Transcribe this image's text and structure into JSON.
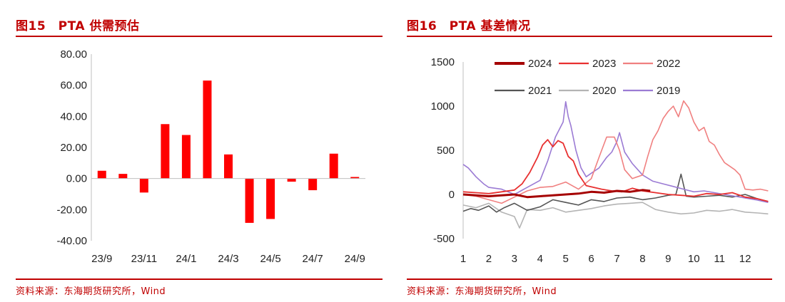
{
  "left": {
    "title": "图15　PTA 供需预估",
    "source": "资料来源：东海期货研究所，Wind",
    "chart_data": {
      "type": "bar",
      "title": "PTA 供需预估",
      "categories": [
        "23/9",
        "23/10",
        "23/11",
        "23/12",
        "24/1",
        "24/2",
        "24/3",
        "24/4",
        "24/5",
        "24/6",
        "24/7",
        "24/8",
        "24/9"
      ],
      "values": [
        5,
        3,
        -9,
        35,
        28,
        63,
        15.5,
        -28.5,
        -26,
        -2,
        -7.5,
        16,
        1
      ],
      "x_tick_labels": [
        "23/9",
        "23/11",
        "24/1",
        "24/3",
        "24/5",
        "24/7",
        "24/9"
      ],
      "y_tick_labels": [
        "80.00",
        "60.00",
        "40.00",
        "20.00",
        "0.00",
        "-20.00",
        "-40.00"
      ],
      "ylim": [
        -40,
        80
      ],
      "bar_color": "#ff0000"
    }
  },
  "right": {
    "title": "图16　PTA 基差情况",
    "source": "资料来源：东海期货研究所，Wind",
    "chart_data": {
      "type": "line",
      "title": "PTA 基差情况",
      "xlim": [
        1,
        13
      ],
      "ylim": [
        -500,
        1500
      ],
      "x_tick_labels": [
        "1",
        "2",
        "3",
        "4",
        "5",
        "6",
        "7",
        "8",
        "9",
        "10",
        "11",
        "12"
      ],
      "y_tick_labels": [
        "1500",
        "1000",
        "500",
        "0",
        "-500"
      ],
      "legend_position": "top",
      "series": [
        {
          "name": "2024",
          "color": "#a50000",
          "width": 3,
          "x": [
            1,
            1.5,
            2,
            2.5,
            3,
            3.5,
            4,
            4.5,
            5,
            5.5,
            6,
            6.5,
            7,
            7.5,
            8,
            8.3
          ],
          "y": [
            0,
            -10,
            -20,
            -10,
            0,
            -30,
            -20,
            -10,
            0,
            10,
            30,
            20,
            40,
            30,
            50,
            40
          ]
        },
        {
          "name": "2023",
          "color": "#e83030",
          "width": 1.8,
          "x": [
            1,
            1.5,
            2,
            2.5,
            3,
            3.3,
            3.6,
            3.9,
            4.1,
            4.3,
            4.5,
            4.7,
            4.9,
            5.1,
            5.3,
            5.5,
            5.8,
            6.1,
            6.4,
            6.8,
            7.2,
            7.6,
            8,
            8.5,
            9,
            9.5,
            10,
            10.5,
            11,
            11.5,
            12,
            12.5,
            12.9
          ],
          "y": [
            30,
            20,
            10,
            30,
            50,
            120,
            250,
            420,
            560,
            620,
            540,
            610,
            580,
            430,
            380,
            230,
            100,
            80,
            60,
            40,
            30,
            70,
            40,
            20,
            0,
            -10,
            -20,
            10,
            0,
            20,
            -30,
            -50,
            -80
          ]
        },
        {
          "name": "2022",
          "color": "#f08080",
          "width": 1.6,
          "x": [
            1,
            1.5,
            2,
            2.5,
            3,
            3.5,
            4,
            4.5,
            5,
            5.5,
            6,
            6.3,
            6.6,
            6.9,
            7.1,
            7.3,
            7.6,
            8,
            8.2,
            8.4,
            8.6,
            8.8,
            9,
            9.2,
            9.4,
            9.6,
            9.8,
            10,
            10.2,
            10.4,
            10.6,
            10.8,
            11,
            11.2,
            11.4,
            11.6,
            11.8,
            12,
            12.3,
            12.6,
            12.9
          ],
          "y": [
            0,
            -20,
            -60,
            -100,
            -30,
            40,
            80,
            90,
            140,
            60,
            180,
            420,
            650,
            650,
            500,
            280,
            180,
            220,
            430,
            620,
            720,
            860,
            940,
            1000,
            880,
            1060,
            980,
            820,
            720,
            760,
            600,
            560,
            450,
            360,
            320,
            280,
            220,
            60,
            50,
            60,
            40
          ]
        },
        {
          "name": "2021",
          "color": "#555555",
          "width": 1.6,
          "x": [
            1,
            1.3,
            1.6,
            2,
            2.3,
            2.6,
            3,
            3.5,
            4,
            4.5,
            5,
            5.5,
            6,
            6.5,
            7,
            7.5,
            8,
            8.5,
            9,
            9.3,
            9.5,
            9.7,
            10,
            10.5,
            11,
            11.5,
            12,
            12.5,
            12.9
          ],
          "y": [
            -190,
            -160,
            -180,
            -130,
            -200,
            -150,
            -100,
            -180,
            -140,
            -60,
            -90,
            -120,
            -60,
            -80,
            -40,
            -30,
            -60,
            -40,
            -10,
            0,
            230,
            -20,
            -30,
            -20,
            -10,
            -30,
            0,
            -50,
            -80
          ]
        },
        {
          "name": "2020",
          "color": "#b4b4b4",
          "width": 1.6,
          "x": [
            1,
            1.5,
            2,
            2.5,
            3,
            3.2,
            3.5,
            4,
            4.5,
            5,
            5.5,
            6,
            6.5,
            7,
            7.5,
            8,
            8.5,
            9,
            9.5,
            10,
            10.5,
            11,
            11.5,
            12,
            12.5,
            12.9
          ],
          "y": [
            -120,
            -150,
            -100,
            -200,
            -250,
            -380,
            -170,
            -180,
            -150,
            -200,
            -180,
            -160,
            -130,
            -110,
            -100,
            -90,
            -170,
            -200,
            -220,
            -210,
            -180,
            -190,
            -170,
            -200,
            -210,
            -220
          ]
        },
        {
          "name": "2019",
          "color": "#9b7bd4",
          "width": 1.6,
          "x": [
            1,
            1.2,
            1.5,
            1.8,
            2,
            2.5,
            3,
            3.5,
            4,
            4.3,
            4.6,
            4.9,
            5,
            5.1,
            5.2,
            5.4,
            5.6,
            5.8,
            6,
            6.3,
            6.6,
            6.8,
            7,
            7.1,
            7.3,
            7.6,
            8,
            8.4,
            8.8,
            9.2,
            9.6,
            10,
            10.4,
            10.8,
            11.2,
            11.6,
            12,
            12.4,
            12.9
          ],
          "y": [
            340,
            300,
            200,
            120,
            80,
            60,
            0,
            80,
            160,
            380,
            650,
            820,
            1050,
            880,
            780,
            500,
            300,
            200,
            240,
            300,
            420,
            480,
            600,
            700,
            480,
            350,
            220,
            150,
            120,
            90,
            60,
            30,
            40,
            20,
            0,
            -20,
            -40,
            -60,
            -90
          ]
        }
      ]
    }
  }
}
